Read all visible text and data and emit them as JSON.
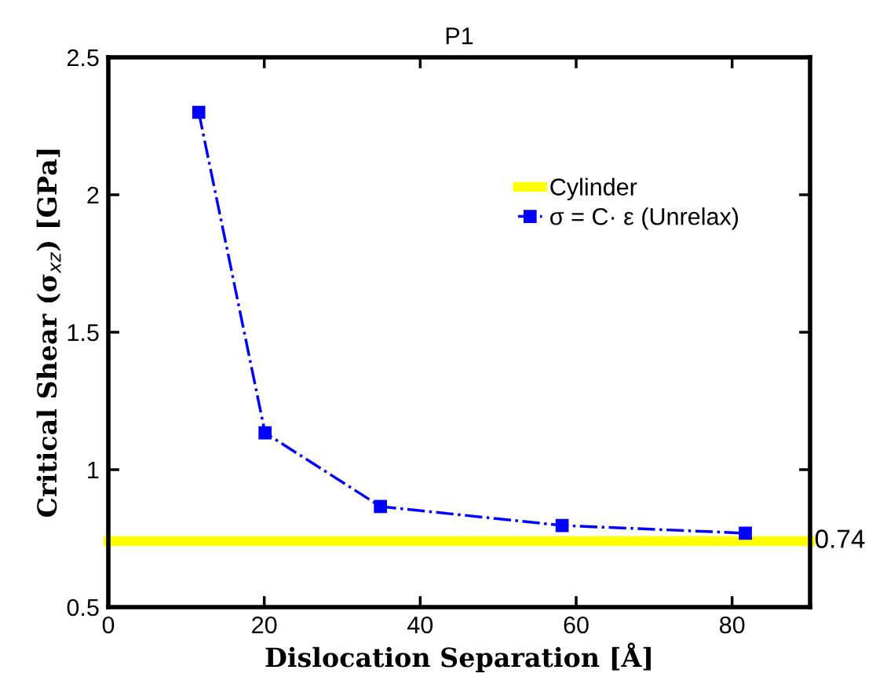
{
  "chart_data": {
    "type": "line",
    "title": "P1",
    "xlabel": "Dislocation Separation [Å]",
    "ylabel": "Critical Shear (σ$_{xz}$) [GPa]",
    "series": [
      {
        "name": "Cylinder",
        "color": "#ffff00",
        "x": [
          0,
          90
        ],
        "values": [
          0.74,
          0.74
        ],
        "marker": "none",
        "line_style": "solid"
      },
      {
        "name": "σ = C· ε (Unrelax)",
        "color": "#0000ff",
        "x": [
          11.6,
          20.1,
          34.9,
          58.2,
          81.7
        ],
        "values": [
          2.3,
          1.134,
          0.866,
          0.797,
          0.769
        ],
        "marker": "square",
        "line_style": "dashdot"
      }
    ],
    "annotations": [
      {
        "text": "0.74",
        "x": 90,
        "y": 0.74
      }
    ],
    "xlim": [
      0,
      90
    ],
    "xticks": [
      0,
      20,
      40,
      60,
      80
    ],
    "ylim": [
      0.5,
      2.5
    ],
    "yticks": [
      0.5,
      1,
      1.5,
      2,
      2.5
    ],
    "grid": false,
    "legend": "top right"
  }
}
